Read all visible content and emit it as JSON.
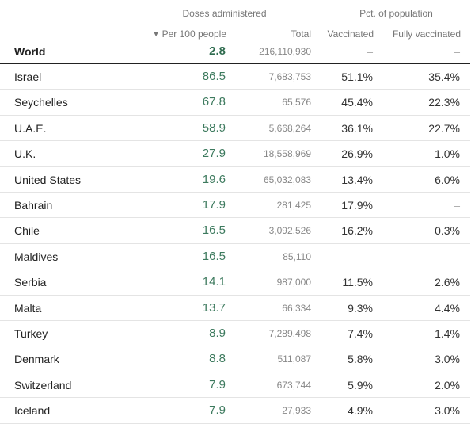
{
  "headers": {
    "group_doses": "Doses administered",
    "group_pct": "Pct. of population",
    "sort_arrow": "▼",
    "per100": "Per 100 people",
    "total": "Total",
    "vaccinated": "Vaccinated",
    "fully_vaccinated": "Fully vaccinated"
  },
  "world": {
    "name": "World",
    "per100": "2.8",
    "total": "216,110,930",
    "vaccinated": "–",
    "fully": "–"
  },
  "rows": [
    {
      "name": "Israel",
      "per100": "86.5",
      "total": "7,683,753",
      "vaccinated": "51.1%",
      "fully": "35.4%"
    },
    {
      "name": "Seychelles",
      "per100": "67.8",
      "total": "65,576",
      "vaccinated": "45.4%",
      "fully": "22.3%"
    },
    {
      "name": "U.A.E.",
      "per100": "58.9",
      "total": "5,668,264",
      "vaccinated": "36.1%",
      "fully": "22.7%"
    },
    {
      "name": "U.K.",
      "per100": "27.9",
      "total": "18,558,969",
      "vaccinated": "26.9%",
      "fully": "1.0%"
    },
    {
      "name": "United States",
      "per100": "19.6",
      "total": "65,032,083",
      "vaccinated": "13.4%",
      "fully": "6.0%"
    },
    {
      "name": "Bahrain",
      "per100": "17.9",
      "total": "281,425",
      "vaccinated": "17.9%",
      "fully": "–"
    },
    {
      "name": "Chile",
      "per100": "16.5",
      "total": "3,092,526",
      "vaccinated": "16.2%",
      "fully": "0.3%"
    },
    {
      "name": "Maldives",
      "per100": "16.5",
      "total": "85,110",
      "vaccinated": "–",
      "fully": "–"
    },
    {
      "name": "Serbia",
      "per100": "14.1",
      "total": "987,000",
      "vaccinated": "11.5%",
      "fully": "2.6%"
    },
    {
      "name": "Malta",
      "per100": "13.7",
      "total": "66,334",
      "vaccinated": "9.3%",
      "fully": "4.4%"
    },
    {
      "name": "Turkey",
      "per100": "8.9",
      "total": "7,289,498",
      "vaccinated": "7.4%",
      "fully": "1.4%"
    },
    {
      "name": "Denmark",
      "per100": "8.8",
      "total": "511,087",
      "vaccinated": "5.8%",
      "fully": "3.0%"
    },
    {
      "name": "Switzerland",
      "per100": "7.9",
      "total": "673,744",
      "vaccinated": "5.9%",
      "fully": "2.0%"
    },
    {
      "name": "Iceland",
      "per100": "7.9",
      "total": "27,933",
      "vaccinated": "4.9%",
      "fully": "3.0%"
    }
  ]
}
